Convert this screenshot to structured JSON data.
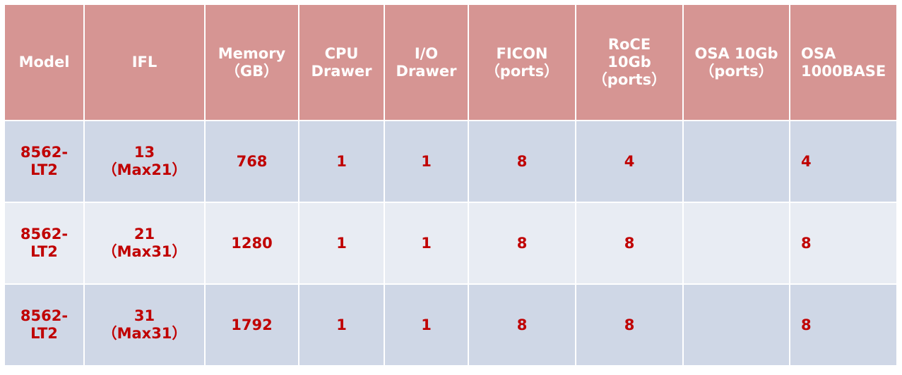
{
  "table": {
    "headers": [
      [
        "Model"
      ],
      [
        "IFL"
      ],
      [
        "Memory",
        "（GB）"
      ],
      [
        "CPU",
        "Drawer"
      ],
      [
        "I/O",
        "Drawer"
      ],
      [
        "FICON",
        "（ports）"
      ],
      [
        "RoCE",
        "10Gb",
        "（ports）"
      ],
      [
        "OSA 10Gb",
        "（ports）"
      ],
      [
        "OSA",
        "1000BASE"
      ]
    ],
    "rows": [
      [
        [
          "8562-",
          "LT2"
        ],
        [
          "13",
          "（Max21）"
        ],
        [
          "768"
        ],
        [
          "1"
        ],
        [
          "1"
        ],
        [
          "8"
        ],
        [
          "4"
        ],
        [
          ""
        ],
        [
          "4"
        ]
      ],
      [
        [
          "8562-",
          "LT2"
        ],
        [
          "21",
          "（Max31）"
        ],
        [
          "1280"
        ],
        [
          "1"
        ],
        [
          "1"
        ],
        [
          "8"
        ],
        [
          "8"
        ],
        [
          ""
        ],
        [
          "8"
        ]
      ],
      [
        [
          "8562-",
          "LT2"
        ],
        [
          "31",
          "（Max31）"
        ],
        [
          "1792"
        ],
        [
          "1"
        ],
        [
          "1"
        ],
        [
          "8"
        ],
        [
          "8"
        ],
        [
          ""
        ],
        [
          "8"
        ]
      ]
    ]
  },
  "colors": {
    "header_bg": "#d69593",
    "row_dark": "#cfd7e6",
    "row_light": "#e8ecf3",
    "value_text": "#c00000"
  }
}
